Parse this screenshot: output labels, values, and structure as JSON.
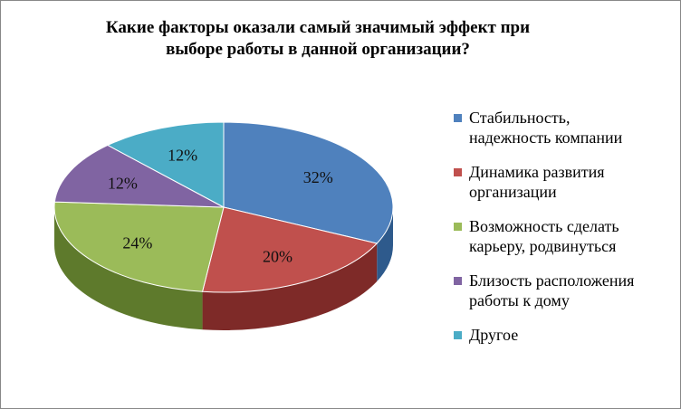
{
  "chart_data": {
    "type": "pie",
    "title_lines": [
      "Какие факторы оказали самый значимый эффект при",
      "выборе работы в данной организации?"
    ],
    "slices": [
      {
        "label_lines": [
          "Стабильность,",
          "надежность компании"
        ],
        "value": 32,
        "data_label": "32%",
        "color": "#4F81BD",
        "side": "#2E5A8C"
      },
      {
        "label_lines": [
          "Динамика развития",
          "организации"
        ],
        "value": 20,
        "data_label": "20%",
        "color": "#C0504D",
        "side": "#7E2A28"
      },
      {
        "label_lines": [
          "Возможность сделать",
          "карьеру,  родвинуться"
        ],
        "value": 24,
        "data_label": "24%",
        "color": "#9BBB59",
        "side": "#5E7A2C"
      },
      {
        "label_lines": [
          "Близость расположения",
          "работы к дому"
        ],
        "value": 12,
        "data_label": "12%",
        "color": "#8064A2",
        "side": "#4F3A6E"
      },
      {
        "label_lines": [
          "Другое"
        ],
        "value": 12,
        "data_label": "12%",
        "color": "#4BACC6",
        "side": "#2B7C93"
      }
    ],
    "legend_position": "right"
  }
}
